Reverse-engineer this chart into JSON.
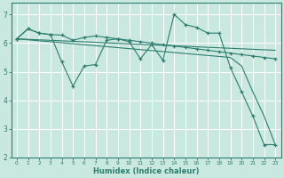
{
  "xlabel": "Humidex (Indice chaleur)",
  "background_color": "#c8e8e0",
  "grid_color": "#ffffff",
  "line_color": "#2e7d6e",
  "xlim": [
    -0.5,
    23.5
  ],
  "ylim": [
    2,
    7.4
  ],
  "xticks": [
    0,
    1,
    2,
    3,
    4,
    5,
    6,
    7,
    8,
    9,
    10,
    11,
    12,
    13,
    14,
    15,
    16,
    17,
    18,
    19,
    20,
    21,
    22,
    23
  ],
  "yticks": [
    2,
    3,
    4,
    5,
    6,
    7
  ],
  "series": [
    {
      "x": [
        0,
        1,
        2,
        3,
        4,
        5,
        6,
        7,
        8,
        9,
        10,
        11,
        12,
        13,
        14,
        15,
        16,
        17,
        18,
        19,
        20,
        21,
        22,
        23
      ],
      "y": [
        6.15,
        6.5,
        6.35,
        6.3,
        5.35,
        4.5,
        5.2,
        5.25,
        6.1,
        6.15,
        6.05,
        5.45,
        5.95,
        5.4,
        7.0,
        6.65,
        6.55,
        6.35,
        6.35,
        5.15,
        4.3,
        3.45,
        2.45,
        2.45
      ],
      "marker": true
    },
    {
      "x": [
        0,
        1,
        2,
        3,
        4,
        5,
        6,
        7,
        8,
        9,
        10,
        11,
        12,
        13,
        14,
        15,
        16,
        17,
        18,
        19,
        20,
        21,
        22,
        23
      ],
      "y": [
        6.15,
        6.5,
        6.35,
        6.3,
        6.28,
        6.1,
        6.2,
        6.25,
        6.2,
        6.15,
        6.1,
        6.05,
        6.0,
        5.95,
        5.9,
        5.85,
        5.8,
        5.75,
        5.7,
        5.65,
        5.6,
        5.55,
        5.5,
        5.45
      ],
      "marker": true
    },
    {
      "x": [
        0,
        23
      ],
      "y": [
        6.15,
        5.75
      ],
      "marker": false
    },
    {
      "x": [
        0,
        19,
        20,
        21,
        22,
        23
      ],
      "y": [
        6.15,
        5.5,
        5.2,
        4.3,
        3.45,
        2.45
      ],
      "marker": false
    }
  ]
}
